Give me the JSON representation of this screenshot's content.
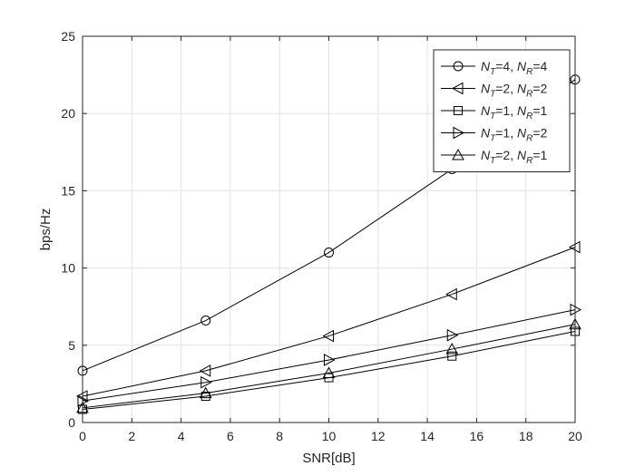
{
  "chart_data": {
    "type": "line",
    "title": "",
    "xlabel": "SNR[dB]",
    "ylabel": "bps/Hz",
    "xlim": [
      0,
      20
    ],
    "ylim": [
      0,
      25
    ],
    "xticks": [
      0,
      2,
      4,
      6,
      8,
      10,
      12,
      14,
      16,
      18,
      20
    ],
    "yticks": [
      0,
      5,
      10,
      15,
      20,
      25
    ],
    "grid": true,
    "legend_position": "top-right",
    "x": [
      0,
      5,
      10,
      15,
      20
    ],
    "series": [
      {
        "label_base": "N",
        "label_sub1": "T",
        "label_mid": "=4, ",
        "label_sub2": "R",
        "label_end": "=4",
        "marker": "circle",
        "color": "#000000",
        "values": [
          3.35,
          6.6,
          11.0,
          16.4,
          22.2
        ]
      },
      {
        "label_base": "N",
        "label_sub1": "T",
        "label_mid": "=2, ",
        "label_sub2": "R",
        "label_end": "=2",
        "marker": "triangle-left",
        "color": "#000000",
        "values": [
          1.7,
          3.35,
          5.6,
          8.3,
          11.35
        ]
      },
      {
        "label_base": "N",
        "label_sub1": "T",
        "label_mid": "=1, ",
        "label_sub2": "R",
        "label_end": "=1",
        "marker": "square",
        "color": "#000000",
        "values": [
          0.85,
          1.7,
          2.9,
          4.3,
          5.9
        ]
      },
      {
        "label_base": "N",
        "label_sub1": "T",
        "label_mid": "=1, ",
        "label_sub2": "R",
        "label_end": "=2",
        "marker": "triangle-right",
        "color": "#000000",
        "values": [
          1.4,
          2.6,
          4.05,
          5.65,
          7.3
        ]
      },
      {
        "label_base": "N",
        "label_sub1": "T",
        "label_mid": "=2, ",
        "label_sub2": "R",
        "label_end": "=1",
        "marker": "triangle-up",
        "color": "#000000",
        "values": [
          0.95,
          1.9,
          3.2,
          4.75,
          6.35
        ]
      }
    ]
  }
}
